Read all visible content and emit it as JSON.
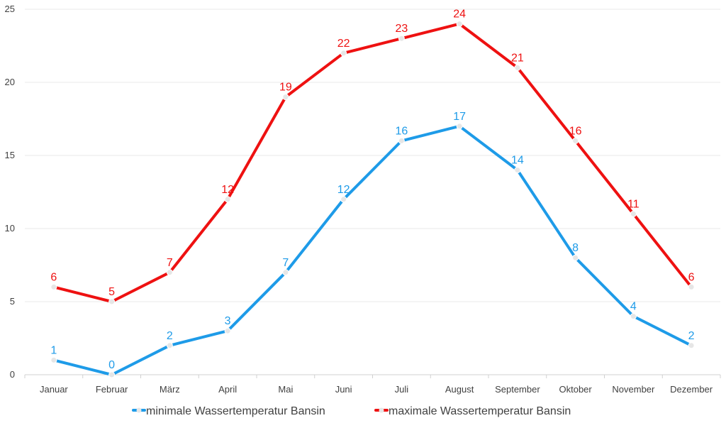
{
  "chart_data": {
    "type": "line",
    "categories": [
      "Januar",
      "Februar",
      "März",
      "April",
      "Mai",
      "Juni",
      "Juli",
      "August",
      "September",
      "Oktober",
      "November",
      "Dezember"
    ],
    "ylim": [
      0,
      25
    ],
    "yticks": [
      0,
      5,
      10,
      15,
      20,
      25
    ],
    "grid": true,
    "legend": "bottom",
    "series": [
      {
        "name": "minimale Wassertemperatur Bansin",
        "values": [
          1,
          0,
          2,
          3,
          7,
          12,
          16,
          17,
          14,
          8,
          4,
          2
        ],
        "color": "#1e9be8"
      },
      {
        "name": "maximale Wassertemperatur Bansin",
        "values": [
          6,
          5,
          7,
          12,
          19,
          22,
          23,
          24,
          21,
          16,
          11,
          6
        ],
        "color": "#ee1111"
      }
    ]
  }
}
